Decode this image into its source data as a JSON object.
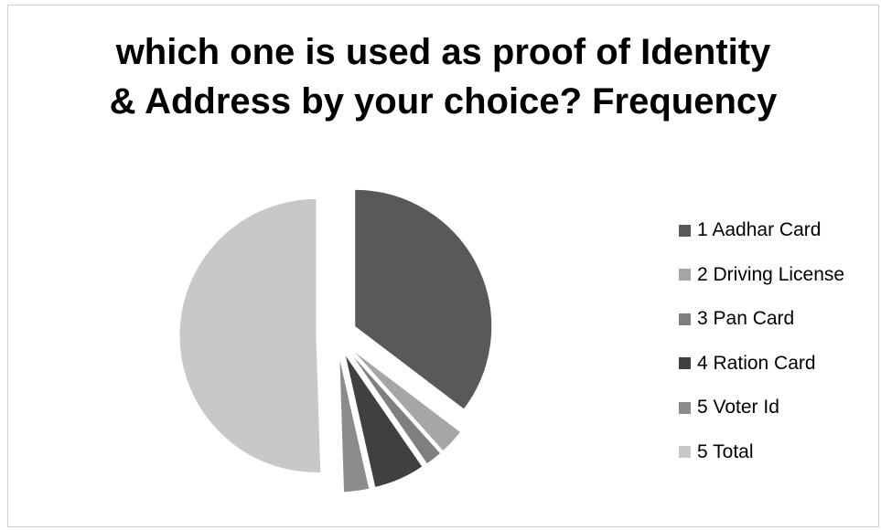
{
  "chart_data": {
    "type": "pie",
    "title_lines": [
      "which one is used as proof of Identity",
      "& Address by your choice?  Frequency"
    ],
    "categories": [
      "1 Aadhar Card",
      "2 Driving License",
      "3 Pan Card",
      "4 Ration Card",
      "5 Voter Id",
      "5 Total"
    ],
    "values": [
      35,
      3,
      2,
      6,
      3,
      50
    ],
    "exploded": true,
    "legend_position": "right",
    "colors": [
      "#595959",
      "#a6a6a6",
      "#7f7f7f",
      "#404040",
      "#8c8c8c",
      "#c8c8c8"
    ]
  }
}
